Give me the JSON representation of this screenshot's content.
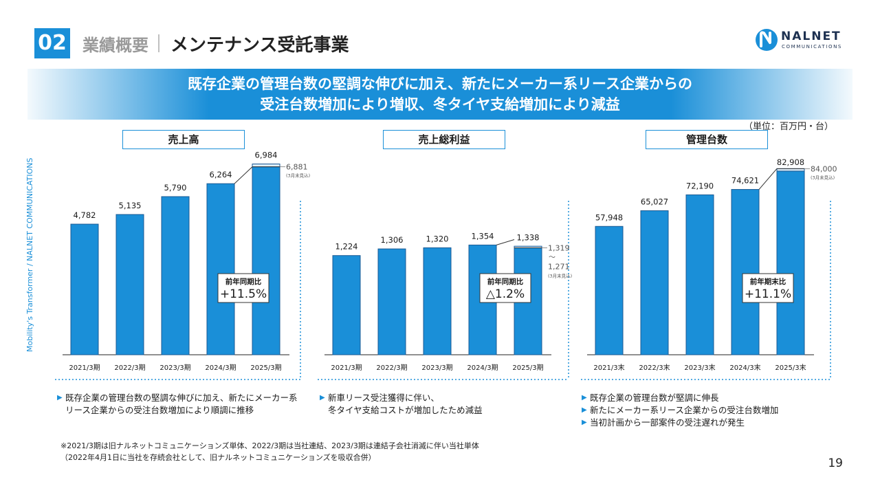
{
  "header": {
    "section_number": "02",
    "category": "業績概要",
    "title": "メンテナンス受託事業"
  },
  "logo": {
    "name": "NALNET",
    "sub": "COMMUNICATIONS"
  },
  "banner": {
    "line1": "既存企業の管理台数の堅調な伸びに加え、新たにメーカー系リース企業からの",
    "line2": "受注台数増加により増収、冬タイヤ支給増加により減益"
  },
  "unit_label": "（単位：百万円・台）",
  "side_text": "Mobility's Transformer / NALNET COMMUNICATIONS",
  "colors": {
    "accent": "#1a8fd8",
    "bar_border": "#1b5a93",
    "text": "#1a1a1a"
  },
  "chart_data": [
    {
      "type": "bar",
      "title": "売上高",
      "categories": [
        "2021/3期",
        "2022/3期",
        "2023/3期",
        "2024/3期",
        "2025/3期"
      ],
      "values": [
        4782,
        5135,
        5790,
        6264,
        6984
      ],
      "value_labels": [
        "4,782",
        "5,135",
        "5,790",
        "6,264",
        "6,984"
      ],
      "ylim": [
        0,
        7300
      ],
      "forecast": {
        "value": 6881,
        "label": "6,881",
        "note": "(3月末見込)"
      },
      "yoy": {
        "label": "前年同期比",
        "value": "+11.5%"
      }
    },
    {
      "type": "bar",
      "title": "売上総利益",
      "categories": [
        "2021/3期",
        "2022/3期",
        "2023/3期",
        "2024/3期",
        "2025/3期"
      ],
      "values": [
        1224,
        1306,
        1320,
        1354,
        1338
      ],
      "value_labels": [
        "1,224",
        "1,306",
        "1,320",
        "1,354",
        "1,338"
      ],
      "ylim": [
        0,
        2460
      ],
      "forecast": {
        "value": 1319,
        "label": "1,319",
        "tilde": "〜",
        "label2": "1,271",
        "note": "(3月末見込)"
      },
      "yoy": {
        "label": "前年同期比",
        "value": "△1.2%"
      }
    },
    {
      "type": "bar",
      "title": "管理台数",
      "categories": [
        "2021/3末",
        "2022/3末",
        "2023/3末",
        "2024/3末",
        "2025/3末"
      ],
      "values": [
        57948,
        65027,
        72190,
        74621,
        82908
      ],
      "value_labels": [
        "57,948",
        "65,027",
        "72,190",
        "74,621",
        "82,908"
      ],
      "ylim": [
        0,
        90000
      ],
      "forecast": {
        "value": 84000,
        "label": "84,000",
        "note": "(3月末見込)"
      },
      "yoy": {
        "label": "前年期末比",
        "value": "+11.1%"
      }
    }
  ],
  "bullets": [
    [
      "既存企業の管理台数の堅調な伸びに加え、新たにメーカー系",
      "リース企業からの受注台数増加により順調に推移"
    ],
    [
      "新車リース受注獲得に伴い、",
      "冬タイヤ支給コストが増加したため減益"
    ],
    [
      "既存企業の管理台数が堅調に伸長",
      "新たにメーカー系リース企業からの受注台数増加",
      "当初計画から一部案件の受注遅れが発生"
    ]
  ],
  "footnote": {
    "line1": "※2021/3期は旧ナルネットコミュニケーションズ単体、2022/3期は当社連結、2023/3期は連結子会社消滅に伴い当社単体",
    "line2": "（2022年4月1日に当社を存続会社として、旧ナルネットコミュニケーションズを吸収合併）"
  },
  "page_number": "19"
}
